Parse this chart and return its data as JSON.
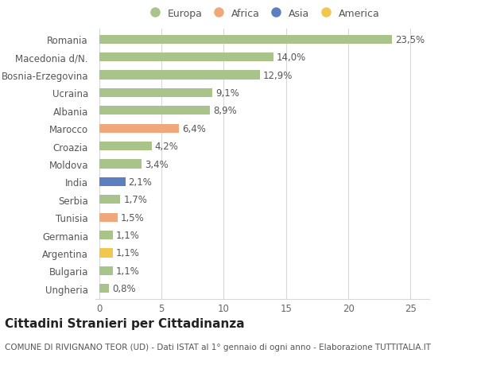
{
  "categories": [
    "Ungheria",
    "Bulgaria",
    "Argentina",
    "Germania",
    "Tunisia",
    "Serbia",
    "India",
    "Moldova",
    "Croazia",
    "Marocco",
    "Albania",
    "Ucraina",
    "Bosnia-Erzegovina",
    "Macedonia d/N.",
    "Romania"
  ],
  "values": [
    0.8,
    1.1,
    1.1,
    1.1,
    1.5,
    1.7,
    2.1,
    3.4,
    4.2,
    6.4,
    8.9,
    9.1,
    12.9,
    14.0,
    23.5
  ],
  "continents": [
    "Europa",
    "Europa",
    "America",
    "Europa",
    "Africa",
    "Europa",
    "Asia",
    "Europa",
    "Europa",
    "Africa",
    "Europa",
    "Europa",
    "Europa",
    "Europa",
    "Europa"
  ],
  "labels": [
    "0,8%",
    "1,1%",
    "1,1%",
    "1,1%",
    "1,5%",
    "1,7%",
    "2,1%",
    "3,4%",
    "4,2%",
    "6,4%",
    "8,9%",
    "9,1%",
    "12,9%",
    "14,0%",
    "23,5%"
  ],
  "continent_colors": {
    "Europa": "#a8c48a",
    "Africa": "#f0a878",
    "Asia": "#5b7fbf",
    "America": "#f0c850"
  },
  "legend_order": [
    "Europa",
    "Africa",
    "Asia",
    "America"
  ],
  "legend_colors": [
    "#a8c48a",
    "#f0a878",
    "#5b7fbf",
    "#f0c850"
  ],
  "title": "Cittadini Stranieri per Cittadinanza",
  "subtitle": "COMUNE DI RIVIGNANO TEOR (UD) - Dati ISTAT al 1° gennaio di ogni anno - Elaborazione TUTTITALIA.IT",
  "xlim": [
    -0.3,
    26.5
  ],
  "xticks": [
    0,
    5,
    10,
    15,
    20,
    25
  ],
  "background_color": "#ffffff",
  "grid_color": "#d8d8d8",
  "bar_height": 0.5,
  "label_fontsize": 8.5,
  "tick_fontsize": 8.5,
  "title_fontsize": 11,
  "subtitle_fontsize": 7.5
}
